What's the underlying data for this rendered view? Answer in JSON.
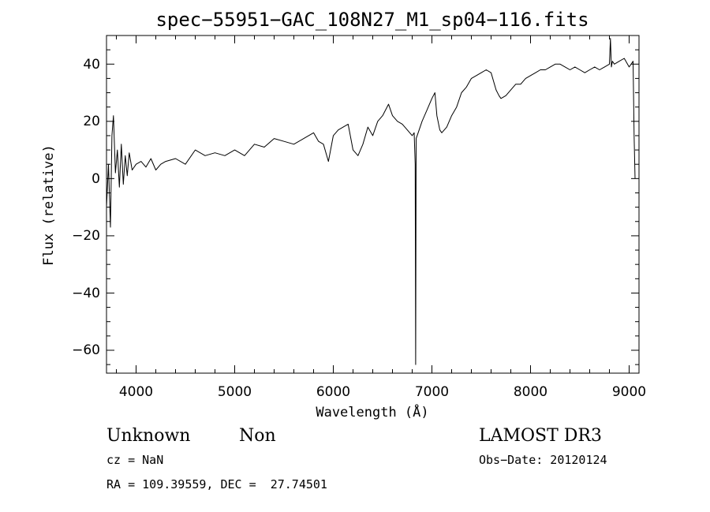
{
  "chart_data": {
    "type": "line",
    "title": "spec−55951−GAC_108N27_M1_sp04−116.fits",
    "xlabel": "Wavelength (Å)",
    "ylabel": "Flux (relative)",
    "xlim": [
      3700,
      9100
    ],
    "ylim": [
      -68,
      50
    ],
    "xticks": [
      "4000",
      "5000",
      "6000",
      "7000",
      "8000",
      "9000"
    ],
    "yticks": [
      "−60",
      "−40",
      "−20",
      "0",
      "20",
      "40"
    ],
    "grid": false,
    "series": [
      {
        "x": [
          3700,
          3720,
          3740,
          3755,
          3770,
          3790,
          3810,
          3830,
          3850,
          3870,
          3890,
          3910,
          3930,
          3960,
          4000,
          4050,
          4100,
          4150,
          4200,
          4250,
          4300,
          4400,
          4500,
          4600,
          4700,
          4800,
          4900,
          5000,
          5100,
          5200,
          5300,
          5400,
          5500,
          5600,
          5700,
          5800,
          5850,
          5900,
          5950,
          6000,
          6050,
          6100,
          6150,
          6200,
          6250,
          6300,
          6350,
          6400,
          6450,
          6500,
          6560,
          6600,
          6650,
          6700,
          6750,
          6800,
          6820,
          6830,
          6835,
          6840,
          6850,
          6870,
          6900,
          6950,
          7000,
          7030,
          7050,
          7080,
          7100,
          7150,
          7200,
          7250,
          7300,
          7350,
          7400,
          7450,
          7500,
          7550,
          7600,
          7650,
          7680,
          7700,
          7750,
          7800,
          7850,
          7900,
          7950,
          8000,
          8050,
          8100,
          8150,
          8200,
          8250,
          8300,
          8350,
          8400,
          8450,
          8500,
          8550,
          8600,
          8650,
          8700,
          8750,
          8800,
          8810,
          8820,
          8830,
          8850,
          8900,
          8950,
          9000,
          9020,
          9040,
          9050,
          9060
        ],
        "y": [
          -10,
          5,
          -17,
          15,
          22,
          2,
          10,
          -3,
          12,
          -2,
          8,
          1,
          9,
          3,
          5,
          6,
          4,
          7,
          3,
          5,
          6,
          7,
          5,
          10,
          8,
          9,
          8,
          10,
          8,
          12,
          11,
          14,
          13,
          12,
          14,
          16,
          13,
          12,
          6,
          15,
          17,
          18,
          19,
          10,
          8,
          12,
          18,
          15,
          20,
          22,
          26,
          22,
          20,
          19,
          17,
          15,
          16,
          5,
          -65,
          14,
          15,
          17,
          20,
          24,
          28,
          30,
          22,
          17,
          16,
          18,
          22,
          25,
          30,
          32,
          35,
          36,
          37,
          38,
          37,
          31,
          29,
          28,
          29,
          31,
          33,
          33,
          35,
          36,
          37,
          38,
          38,
          39,
          40,
          40,
          39,
          38,
          39,
          38,
          37,
          38,
          39,
          38,
          39,
          40,
          49,
          39,
          41,
          40,
          41,
          42,
          39,
          40,
          41,
          15,
          0
        ]
      }
    ]
  },
  "footer": {
    "object_name": "Unknown",
    "object_class": "Non",
    "redshift": "cz = NaN",
    "coords": "RA = 109.39559, DEC =  27.74501",
    "survey": "LAMOST DR3",
    "obs_date": "Obs−Date: 20120124"
  },
  "colors": {
    "line": "#000000",
    "background": "#ffffff"
  }
}
